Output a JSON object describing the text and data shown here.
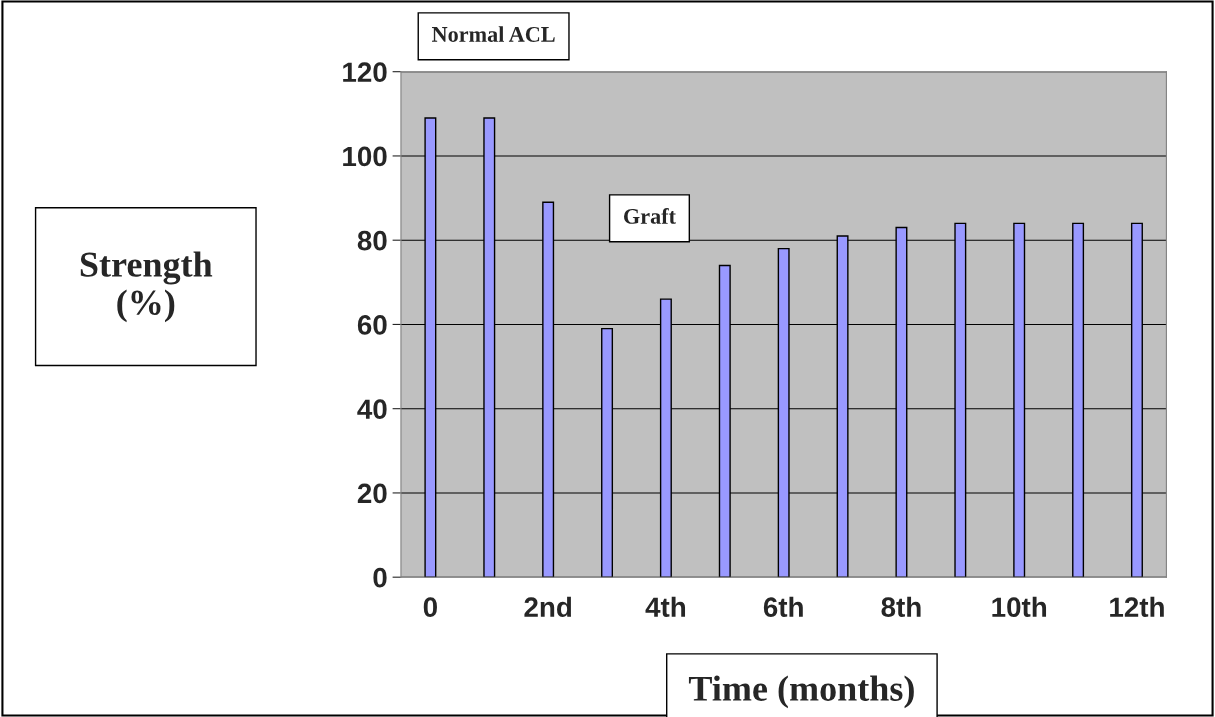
{
  "chart_data": {
    "type": "bar",
    "xlabel": "Time (months)",
    "ylabel": "Strength\n(%)",
    "categories": [
      "0",
      null,
      "2nd",
      null,
      "4th",
      null,
      "6th",
      null,
      "8th",
      null,
      "10th",
      null,
      "12th"
    ],
    "values": [
      109,
      109,
      89,
      59,
      66,
      74,
      78,
      81,
      83,
      84,
      84,
      84,
      84
    ],
    "color": "#9999ff",
    "ylim": [
      0,
      120
    ],
    "yticks": [
      0,
      20,
      40,
      60,
      80,
      100,
      120
    ],
    "grid": "y",
    "annotations": [
      "Normal ACL",
      "Graft"
    ]
  }
}
